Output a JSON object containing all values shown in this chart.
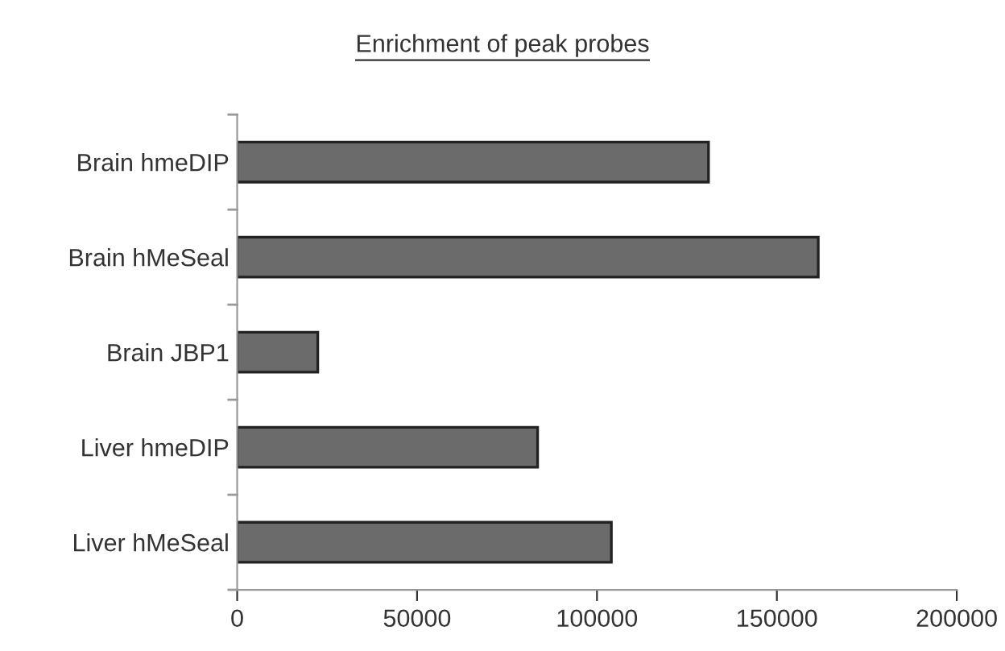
{
  "chart_data": {
    "type": "bar",
    "orientation": "horizontal",
    "title": "Enrichment of peak probes",
    "categories": [
      "Brain hmeDIP",
      "Brain hMeSeal",
      "Brain JBP1",
      "Liver hmeDIP",
      "Liver hMeSeal"
    ],
    "values": [
      131000,
      161500,
      22400,
      83500,
      104000
    ],
    "color": "#6b6b6b",
    "xlim": [
      0,
      200000
    ],
    "xticks": [
      0,
      50000,
      100000,
      150000,
      200000
    ],
    "grid": false
  }
}
